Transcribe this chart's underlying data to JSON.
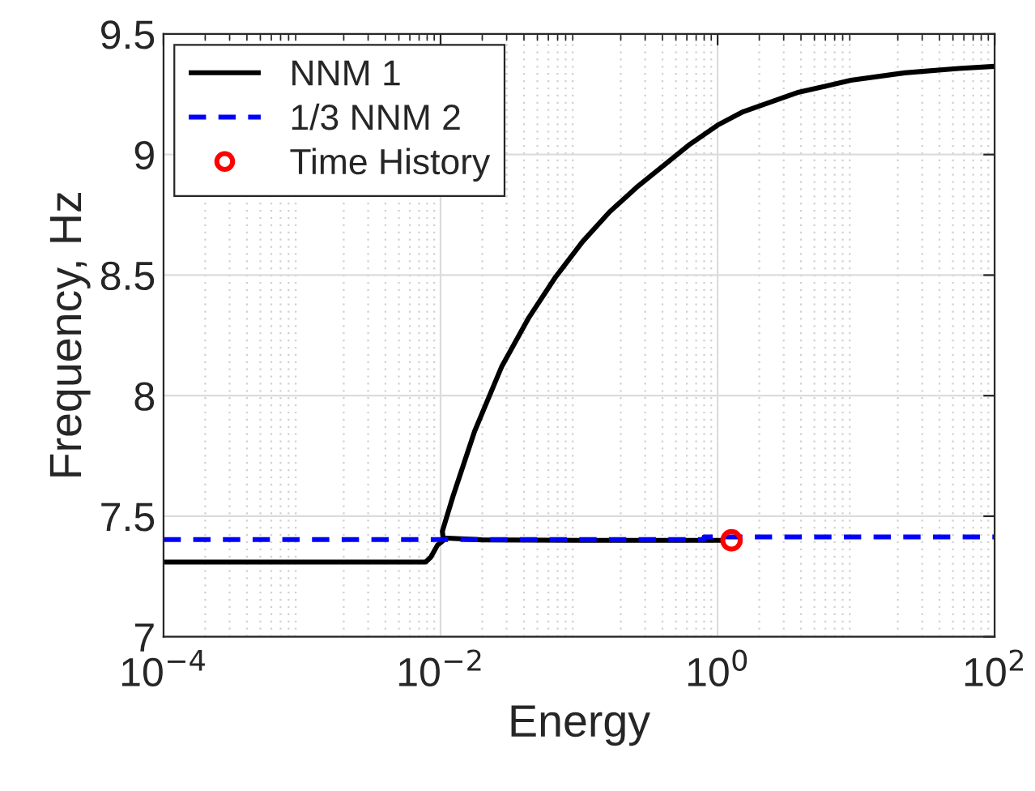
{
  "chart_data": {
    "type": "line",
    "xlabel": "Energy",
    "ylabel": "Frequency, Hz",
    "log": "x",
    "xlim": [
      0.0001,
      100
    ],
    "ylim": [
      7,
      9.5
    ],
    "xticks": [
      {
        "value": 0.0001,
        "label": "10$^{−4}$"
      },
      {
        "value": 0.01,
        "label": "10$^{−2}$"
      },
      {
        "value": 1,
        "label": "10$^{0}$"
      },
      {
        "value": 100,
        "label": "10$^{2}$"
      }
    ],
    "yticks": [
      7,
      7.5,
      8,
      8.5,
      9,
      9.5
    ],
    "grid": true,
    "legend": "top left",
    "series": [
      {
        "name": "NNM 1",
        "color": "#000000",
        "line_style": "solid",
        "marker": "none",
        "x": [
          0.0001,
          0.0078,
          0.0085,
          0.0095,
          0.0105,
          0.0103,
          0.0123,
          0.0176,
          0.0277,
          0.0434,
          0.0678,
          0.106,
          0.166,
          0.259,
          0.405,
          0.632,
          1,
          1.53,
          3.75,
          9.18,
          22.4,
          54.8,
          100,
          null,
          0.0105,
          0.02,
          0.1,
          0.5,
          1.1
        ],
        "values": [
          7.31,
          7.31,
          7.33,
          7.38,
          7.4,
          7.437,
          7.583,
          7.852,
          8.122,
          8.324,
          8.493,
          8.639,
          8.762,
          8.863,
          8.953,
          9.043,
          9.122,
          9.178,
          9.257,
          9.308,
          9.339,
          9.357,
          9.366,
          null,
          7.41,
          7.402,
          7.4,
          7.4,
          7.4
        ]
      },
      {
        "name": "1/3 NNM 2",
        "color": "#0000ff",
        "line_style": "dashed",
        "marker": "none",
        "x": [
          0.0001,
          0.01,
          0.8,
          0.8,
          10,
          100
        ],
        "values": [
          7.403,
          7.403,
          7.403,
          7.414,
          7.414,
          7.414
        ]
      },
      {
        "name": "Time History",
        "type": "scatter",
        "color": "#ff0000",
        "marker": "circle",
        "x": [
          1.26
        ],
        "values": [
          7.4
        ]
      }
    ]
  }
}
